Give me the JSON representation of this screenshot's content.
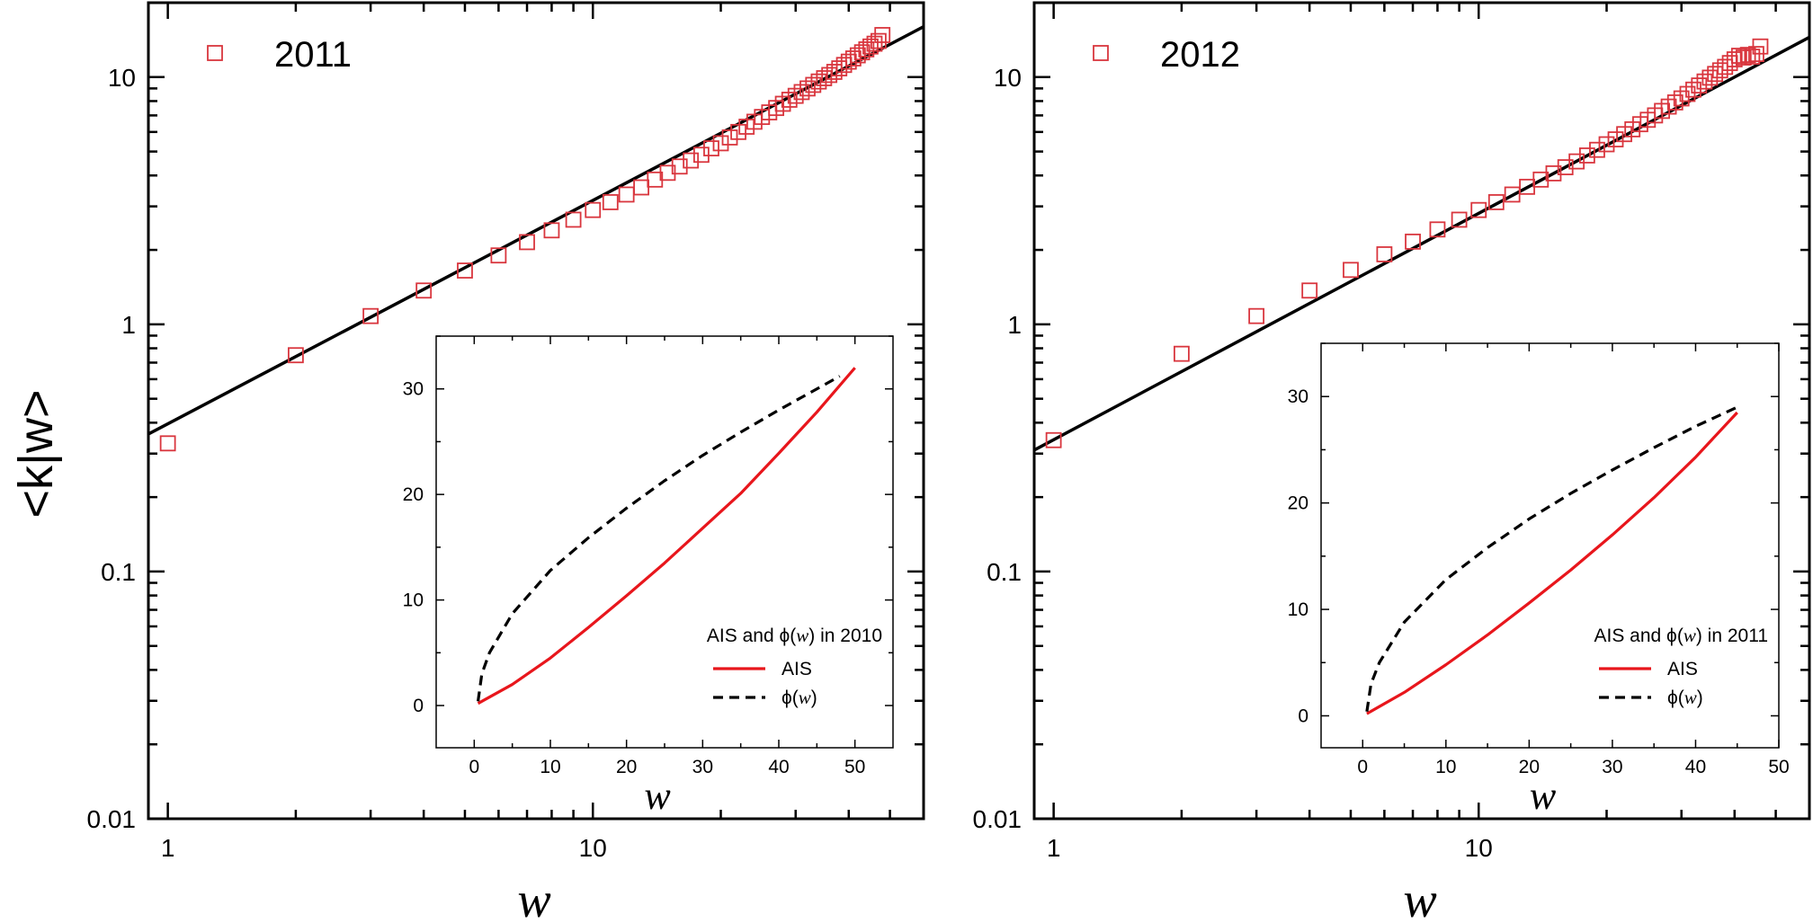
{
  "chart_data": [
    {
      "type": "scatter",
      "title": "",
      "xlabel": "w",
      "ylabel": "<k|w>",
      "xscale": "log",
      "yscale": "log",
      "xlim": [
        0.9,
        60
      ],
      "ylim": [
        0.01,
        20
      ],
      "grid": false,
      "legend": "top-left",
      "x_ticks": [
        "1",
        "10"
      ],
      "y_ticks": [
        "0.01",
        "0.1",
        "1",
        "10"
      ],
      "series": [
        {
          "name": "2011",
          "marker": "open-square",
          "color": "#d9363e",
          "x": [
            1,
            2,
            3,
            4,
            5,
            6,
            7,
            8,
            9,
            10,
            11,
            12,
            13,
            14,
            15,
            16,
            17,
            18,
            19,
            20,
            21,
            22,
            23,
            24,
            25,
            26,
            27,
            28,
            29,
            30,
            31,
            32,
            33,
            34,
            35,
            36,
            37,
            38,
            39,
            40,
            41,
            42,
            43,
            44,
            45,
            46,
            47,
            48
          ],
          "y": [
            0.33,
            0.75,
            1.08,
            1.37,
            1.65,
            1.9,
            2.15,
            2.4,
            2.65,
            2.9,
            3.12,
            3.35,
            3.58,
            3.85,
            4.1,
            4.35,
            4.6,
            4.85,
            5.15,
            5.4,
            5.7,
            6.0,
            6.3,
            6.6,
            6.9,
            7.2,
            7.5,
            7.8,
            8.1,
            8.4,
            8.7,
            9.0,
            9.3,
            9.6,
            9.9,
            10.2,
            10.5,
            10.85,
            11.2,
            11.55,
            11.9,
            12.25,
            12.6,
            12.95,
            13.3,
            13.65,
            14.0,
            14.8
          ]
        },
        {
          "name": "",
          "style": "line",
          "color": "#000000",
          "x": [
            0.9,
            60
          ],
          "y": [
            0.36,
            16.0
          ]
        }
      ],
      "inset": {
        "type": "line",
        "title": "AIS and ϕ(w) in 2010",
        "xlabel": "w",
        "xlim": [
          -5,
          55
        ],
        "ylim": [
          -4,
          35
        ],
        "x_ticks": [
          "0",
          "10",
          "20",
          "30",
          "40",
          "50"
        ],
        "y_ticks": [
          "0",
          "10",
          "20",
          "30"
        ],
        "legend": "bottom-right",
        "series": [
          {
            "name": "AIS",
            "style": "solid",
            "color": "#e8161c",
            "x": [
              0.5,
              5,
              10,
              15,
              20,
              25,
              30,
              35,
              40,
              45,
              50
            ],
            "y": [
              0.2,
              2.0,
              4.5,
              7.4,
              10.4,
              13.5,
              16.8,
              20.1,
              23.9,
              27.8,
              32.0
            ]
          },
          {
            "name": "ϕ(w)",
            "style": "dashed",
            "color": "#000000",
            "x": [
              0.5,
              1,
              2,
              5,
              10,
              15,
              20,
              25,
              30,
              35,
              40,
              45,
              48
            ],
            "y": [
              0.4,
              3.0,
              5.0,
              8.7,
              12.8,
              15.9,
              18.7,
              21.3,
              23.7,
              25.9,
              28.0,
              30.0,
              31.2
            ]
          }
        ]
      }
    },
    {
      "type": "scatter",
      "title": "",
      "xlabel": "w",
      "ylabel": "",
      "xscale": "log",
      "yscale": "log",
      "xlim": [
        0.9,
        60
      ],
      "ylim": [
        0.01,
        20
      ],
      "grid": false,
      "legend": "top-left",
      "x_ticks": [
        "1",
        "10"
      ],
      "y_ticks": [
        "0.01",
        "0.1",
        "1",
        "10"
      ],
      "series": [
        {
          "name": "2012",
          "marker": "open-square",
          "color": "#d9363e",
          "x": [
            1,
            2,
            3,
            4,
            5,
            6,
            7,
            8,
            9,
            10,
            11,
            12,
            13,
            14,
            15,
            16,
            17,
            18,
            19,
            20,
            21,
            22,
            23,
            24,
            25,
            26,
            27,
            28,
            29,
            30,
            31,
            32,
            33,
            34,
            35,
            36,
            37,
            38,
            39,
            40,
            41,
            42,
            43,
            44,
            45,
            46
          ],
          "y": [
            0.34,
            0.76,
            1.08,
            1.37,
            1.66,
            1.92,
            2.16,
            2.42,
            2.65,
            2.9,
            3.12,
            3.35,
            3.6,
            3.85,
            4.08,
            4.32,
            4.56,
            4.82,
            5.08,
            5.35,
            5.6,
            5.88,
            6.15,
            6.45,
            6.72,
            7.0,
            7.3,
            7.6,
            7.9,
            8.2,
            8.55,
            8.9,
            9.25,
            9.6,
            9.95,
            10.3,
            10.65,
            11.0,
            11.4,
            11.8,
            12.2,
            12.0,
            12.3,
            12.1,
            12.4,
            13.3
          ]
        },
        {
          "name": "",
          "style": "line",
          "color": "#000000",
          "x": [
            0.9,
            60
          ],
          "y": [
            0.31,
            14.5
          ]
        }
      ],
      "inset": {
        "type": "line",
        "title": "AIS and ϕ(w) in 2011",
        "xlabel": "w",
        "xlim": [
          -5,
          50
        ],
        "ylim": [
          -3,
          35
        ],
        "x_ticks": [
          "0",
          "10",
          "20",
          "30",
          "40",
          "50"
        ],
        "y_ticks": [
          "0",
          "10",
          "20",
          "30"
        ],
        "legend": "bottom-right",
        "series": [
          {
            "name": "AIS",
            "style": "solid",
            "color": "#e8161c",
            "x": [
              0.5,
              5,
              10,
              15,
              20,
              25,
              30,
              35,
              40,
              45
            ],
            "y": [
              0.2,
              2.2,
              4.8,
              7.6,
              10.6,
              13.7,
              17.0,
              20.5,
              24.3,
              28.5
            ]
          },
          {
            "name": "ϕ(w)",
            "style": "dashed",
            "color": "#000000",
            "x": [
              0.5,
              1,
              2,
              5,
              10,
              15,
              20,
              25,
              30,
              35,
              40,
              45
            ],
            "y": [
              0.4,
              3.0,
              5.0,
              8.8,
              12.8,
              15.8,
              18.5,
              20.9,
              23.1,
              25.2,
              27.2,
              29.0
            ]
          }
        ]
      }
    }
  ]
}
